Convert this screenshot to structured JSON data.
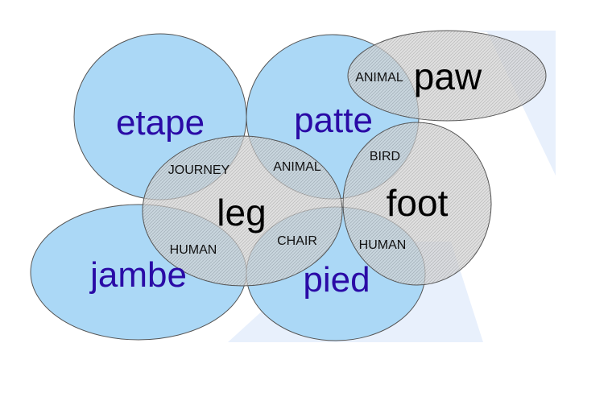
{
  "colors": {
    "french_fill": "#abd8f6",
    "english_fill": "#d6d6d6",
    "outline": "#555555",
    "french_text": "#2a0aa6",
    "english_text": "#000000",
    "watermark": "#e4ecfb"
  },
  "words": {
    "etape": "etape",
    "patte": "patte",
    "jambe": "jambe",
    "pied": "pied",
    "leg": "leg",
    "foot": "foot",
    "paw": "paw"
  },
  "senses": {
    "journey": "JOURNEY",
    "animal_leg_patte": "ANIMAL",
    "animal_paw_patte": "ANIMAL",
    "bird": "BIRD",
    "human_leg_jambe": "HUMAN",
    "chair": "CHAIR",
    "human_foot_pied": "HUMAN"
  }
}
